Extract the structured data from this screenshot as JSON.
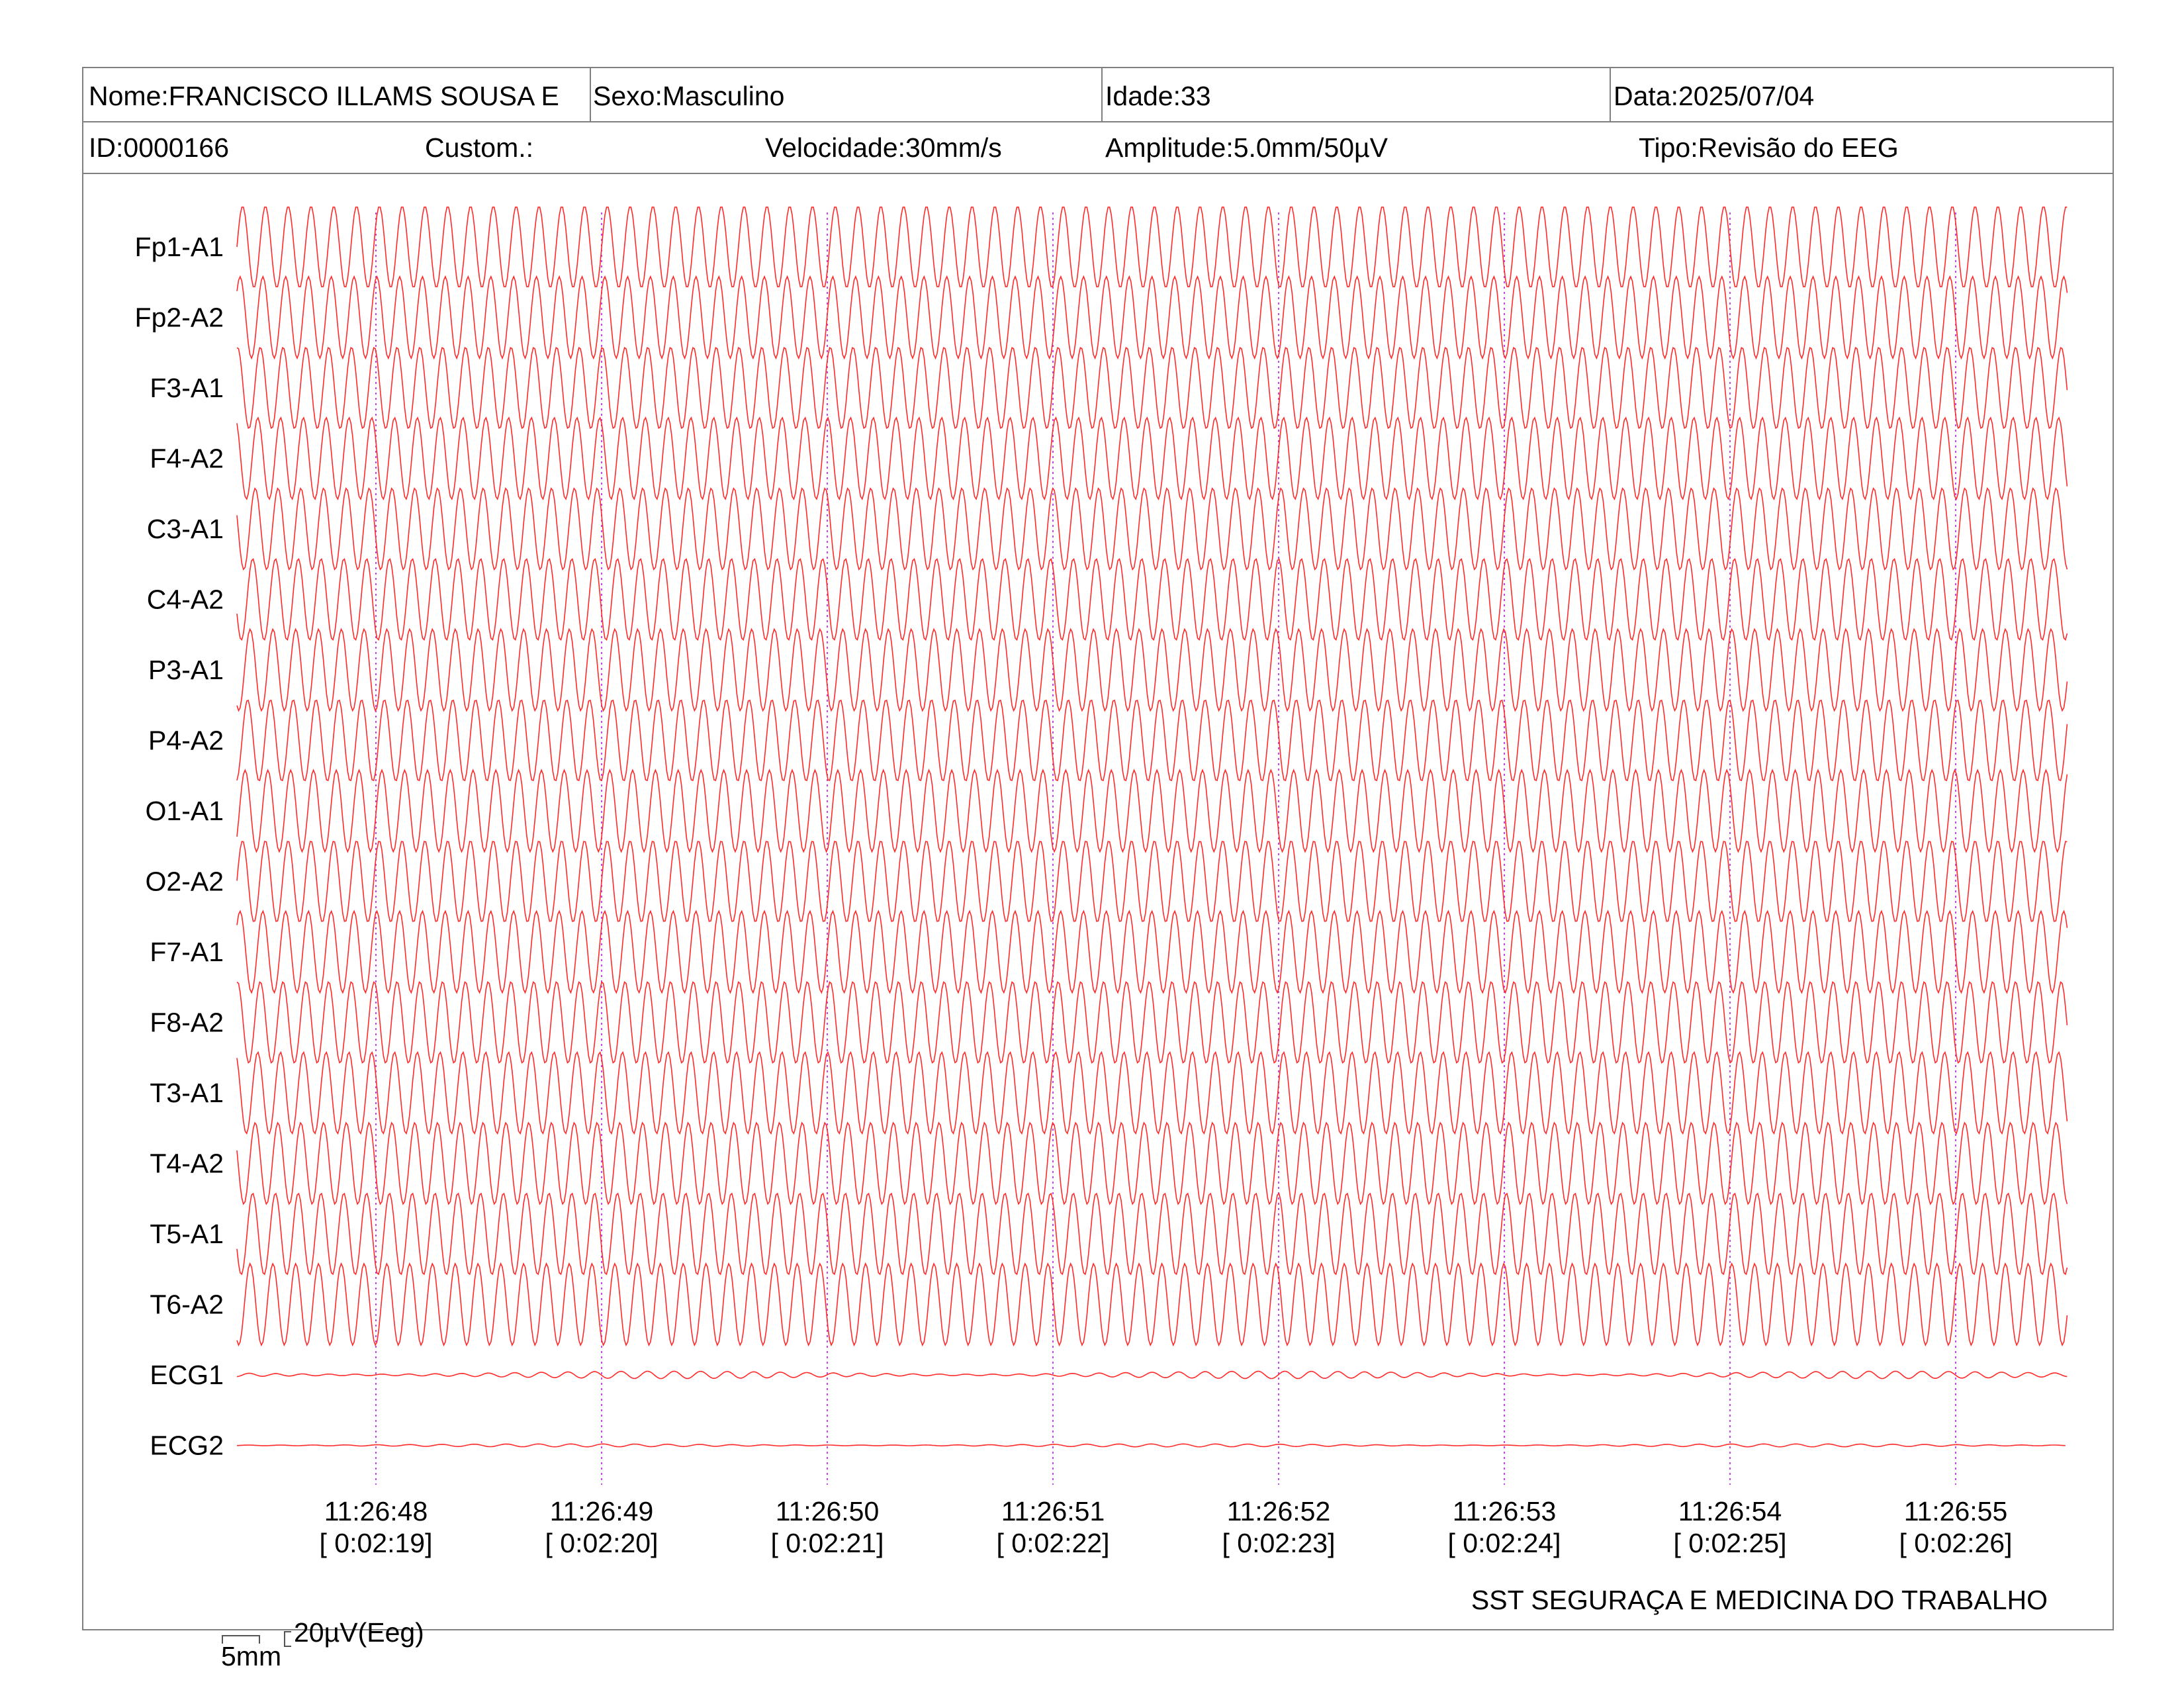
{
  "header": {
    "nome": "Nome:FRANCISCO ILLAMS SOUSA E",
    "sexo": "Sexo:Masculino",
    "idade": "Idade:33",
    "data": "Data:2025/07/04",
    "id": "ID:0000166",
    "custom": "Custom.:",
    "velocidade": "Velocidade:30mm/s",
    "amplitude": "Amplitude:5.0mm/50µV",
    "tipo": "Tipo:Revisão do EEG"
  },
  "scale": {
    "time_label": "5mm",
    "amp_label": "20µV(Eeg)"
  },
  "footer": {
    "organization": "SST SEGURAÇA E MEDICINA DO TRABALHO"
  },
  "colors": {
    "trace": "#ff2a2a",
    "marker": "#cc44ee",
    "border": "#7f7f7f"
  },
  "chart_data": {
    "type": "line",
    "channels": [
      "Fp1-A1",
      "Fp2-A2",
      "F3-A1",
      "F4-A2",
      "C3-A1",
      "C4-A2",
      "P3-A1",
      "P4-A2",
      "O1-A1",
      "O2-A2",
      "F7-A1",
      "F8-A2",
      "T3-A1",
      "T4-A2",
      "T5-A1",
      "T6-A2",
      "ECG1",
      "ECG2"
    ],
    "time_markers": [
      {
        "clock": "11:26:48",
        "elapsed": "[ 0:02:19]"
      },
      {
        "clock": "11:26:49",
        "elapsed": "[ 0:02:20]"
      },
      {
        "clock": "11:26:50",
        "elapsed": "[ 0:02:21]"
      },
      {
        "clock": "11:26:51",
        "elapsed": "[ 0:02:22]"
      },
      {
        "clock": "11:26:52",
        "elapsed": "[ 0:02:23]"
      },
      {
        "clock": "11:26:53",
        "elapsed": "[ 0:02:24]"
      },
      {
        "clock": "11:26:54",
        "elapsed": "[ 0:02:25]"
      },
      {
        "clock": "11:26:55",
        "elapsed": "[ 0:02:26]"
      }
    ],
    "eeg_frequency_hz": 9.9,
    "eeg_amplitude_uv": 110,
    "ecg1_amplitude_uv": 5,
    "ecg2_amplitude_uv": 2
  }
}
